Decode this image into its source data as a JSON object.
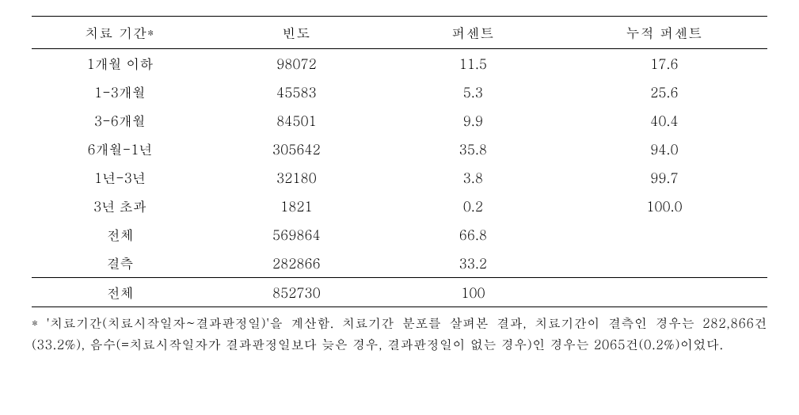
{
  "table": {
    "type": "table",
    "columns": [
      "치료 기간*",
      "빈도",
      "퍼센트",
      "누적 퍼센트"
    ],
    "column_widths": [
      "24%",
      "24%",
      "24%",
      "28%"
    ],
    "rows": [
      {
        "period": "1개월 이하",
        "frequency": "98072",
        "percent": "11.5",
        "cumulative": "17.6"
      },
      {
        "period": "1-3개월",
        "frequency": "45583",
        "percent": "5.3",
        "cumulative": "25.6"
      },
      {
        "period": "3-6개월",
        "frequency": "84501",
        "percent": "9.9",
        "cumulative": "40.4"
      },
      {
        "period": "6개월-1년",
        "frequency": "305642",
        "percent": "35.8",
        "cumulative": "94.0"
      },
      {
        "period": "1년-3년",
        "frequency": "32180",
        "percent": "3.8",
        "cumulative": "99.7"
      },
      {
        "period": "3년 초과",
        "frequency": "1821",
        "percent": "0.2",
        "cumulative": "100.0"
      },
      {
        "period": "전체",
        "frequency": "569864",
        "percent": "66.8",
        "cumulative": ""
      },
      {
        "period": "결측",
        "frequency": "282866",
        "percent": "33.2",
        "cumulative": ""
      }
    ],
    "total_row": {
      "period": "전체",
      "frequency": "852730",
      "percent": "100",
      "cumulative": ""
    },
    "border_color": "#000000",
    "background_color": "#ffffff",
    "text_color": "#000000",
    "font_size": 17,
    "header_font_size": 17,
    "row_padding": "6px 4px",
    "header_padding": "8px 4px"
  },
  "footnote": {
    "text": "* '치료기간(치료시작일자~결과판정일)'을 계산함. 치료기간 분포를 살펴본 결과, 치료기간이 결측인 경우는 282,866건(33.2%), 음수(=치료시작일자가 결과판정일보다 늦은 경우, 결과판정일이 없는 경우)인 경우는 2065건(0.2%)이었다.",
    "font_size": 16,
    "line_height": 1.7
  }
}
